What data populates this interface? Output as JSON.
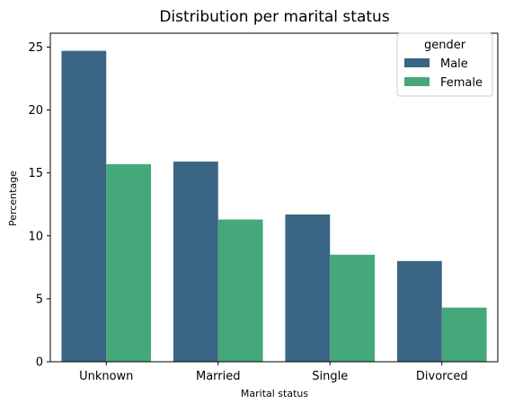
{
  "chart_data": {
    "type": "bar",
    "title": "Distribution per marital status",
    "xlabel": "Marital status",
    "ylabel": "Percentage",
    "categories": [
      "Unknown",
      "Married",
      "Single",
      "Divorced"
    ],
    "series": [
      {
        "name": "Male",
        "values": [
          24.7,
          15.9,
          11.7,
          8.0
        ],
        "color": "#3b6584"
      },
      {
        "name": "Female",
        "values": [
          15.7,
          11.3,
          8.5,
          4.3
        ],
        "color": "#44a87a"
      }
    ],
    "ylim": [
      0,
      26.1
    ],
    "yticks": [
      0,
      5,
      10,
      15,
      20,
      25
    ],
    "grid": false,
    "legend": {
      "title": "gender",
      "placement": "top-right",
      "entries": [
        "Male",
        "Female"
      ]
    }
  }
}
